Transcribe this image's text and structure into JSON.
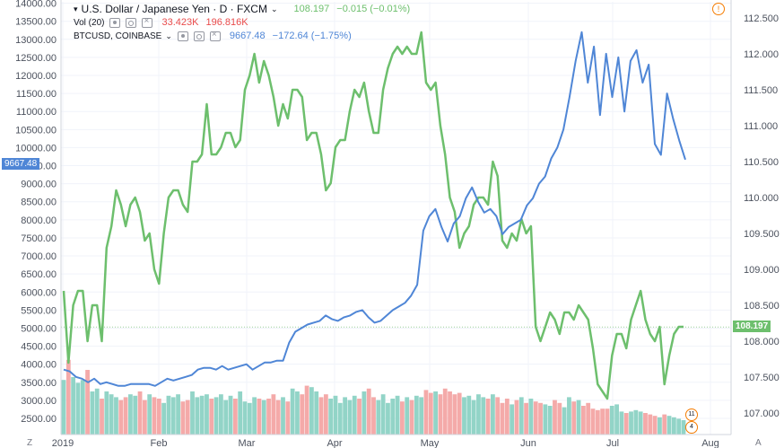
{
  "header": {
    "main_title": "U.S. Dollar / Japanese Yen · D · FXCM",
    "main_last": "108.197",
    "main_change": "−0.015 (−0.01%)",
    "vol_label": "Vol (20)",
    "vol_a": "33.423K",
    "vol_b": "196.816K",
    "compare_label": "BTCUSD, COINBASE",
    "compare_last": "9667.48",
    "compare_change": "−172.64 (−1.75%)"
  },
  "price_tags": {
    "left": "9667.48",
    "right": "108.197"
  },
  "bottom_left_btn": "Z",
  "bottom_right_btn": "A",
  "alert_icon": "!",
  "badges": [
    "11",
    "4"
  ],
  "colors": {
    "usdjpy": "#6dbf6d",
    "btc": "#4f86d6",
    "vol_up": "#86cfc1",
    "vol_down": "#f3a1a0",
    "last_price_line": "#9ed49a",
    "accent_orange": "#f57c00"
  },
  "chart_data": {
    "type": "line",
    "x_labels": [
      "2019",
      "Feb",
      "Mar",
      "Apr",
      "May",
      "Jun",
      "Jul",
      "Aug"
    ],
    "left_axis": {
      "ticks": [
        "14000.00",
        "13500.00",
        "13000.00",
        "12500.00",
        "12000.00",
        "11500.00",
        "11000.00",
        "10500.00",
        "10000.00",
        "9500.00",
        "9000.00",
        "8500.00",
        "8000.00",
        "7500.00",
        "7000.00",
        "6500.00",
        "6000.00",
        "5500.00",
        "5000.00",
        "4500.00",
        "4000.00",
        "3500.00",
        "3000.00",
        "2500.00"
      ],
      "range": [
        2500,
        14000
      ]
    },
    "right_axis": {
      "ticks": [
        "112.500",
        "112.000",
        "111.500",
        "111.000",
        "110.500",
        "110.000",
        "109.500",
        "109.000",
        "108.500",
        "108.000",
        "107.500",
        "107.000"
      ],
      "range": [
        106.7,
        112.6
      ]
    },
    "series": [
      {
        "name": "U.S. Dollar / Japanese Yen",
        "axis": "right",
        "values": [
          108.7,
          107.7,
          108.5,
          108.7,
          108.7,
          108.0,
          108.5,
          108.5,
          108.0,
          109.3,
          109.6,
          110.1,
          109.9,
          109.6,
          109.9,
          110.0,
          109.8,
          109.4,
          109.5,
          109.0,
          108.8,
          109.5,
          110.0,
          110.1,
          110.1,
          109.9,
          109.8,
          110.5,
          110.5,
          110.6,
          111.3,
          110.6,
          110.6,
          110.7,
          110.9,
          110.9,
          110.7,
          110.8,
          111.5,
          111.7,
          112.0,
          111.6,
          111.9,
          111.7,
          111.4,
          111.0,
          111.3,
          111.1,
          111.5,
          111.5,
          111.4,
          110.8,
          110.9,
          110.9,
          110.6,
          110.1,
          110.2,
          110.7,
          110.8,
          110.8,
          111.2,
          111.5,
          111.4,
          111.6,
          111.2,
          110.9,
          110.9,
          111.5,
          111.8,
          112.0,
          112.1,
          112.0,
          112.1,
          112.0,
          112.0,
          112.3,
          111.6,
          111.5,
          111.6,
          111.0,
          110.6,
          110.0,
          109.8,
          109.3,
          109.5,
          109.6,
          109.9,
          110.0,
          110.0,
          109.9,
          110.5,
          110.3,
          109.4,
          109.3,
          109.5,
          109.4,
          109.7,
          109.5,
          109.6,
          108.2,
          108.0,
          108.2,
          108.4,
          108.3,
          108.1,
          108.4,
          108.4,
          108.3,
          108.5,
          108.4,
          108.3,
          107.9,
          107.4,
          107.3,
          107.2,
          107.8,
          108.1,
          108.1,
          107.9,
          108.3,
          108.5,
          108.7,
          108.3,
          108.1,
          108.0,
          108.2,
          107.4,
          107.8,
          108.1,
          108.2,
          108.2
        ]
      },
      {
        "name": "BTCUSD, COINBASE",
        "axis": "left",
        "values": [
          3850,
          3800,
          3650,
          3600,
          3500,
          3600,
          3450,
          3500,
          3450,
          3400,
          3400,
          3450,
          3450,
          3450,
          3450,
          3400,
          3500,
          3600,
          3550,
          3600,
          3650,
          3700,
          3850,
          3900,
          3900,
          3850,
          3950,
          3850,
          3900,
          3950,
          4000,
          3850,
          3950,
          4050,
          4050,
          4100,
          4100,
          4600,
          4900,
          5000,
          5100,
          5150,
          5200,
          5350,
          5250,
          5200,
          5300,
          5350,
          5450,
          5500,
          5300,
          5150,
          5200,
          5350,
          5500,
          5600,
          5700,
          5900,
          6200,
          7700,
          8100,
          8300,
          7800,
          7400,
          7900,
          8100,
          8600,
          8900,
          8500,
          8200,
          8300,
          8100,
          7600,
          7800,
          7900,
          8000,
          8400,
          8600,
          9000,
          9200,
          9700,
          10000,
          10500,
          11400,
          12400,
          13200,
          11800,
          12800,
          10900,
          12600,
          11400,
          12500,
          11000,
          12400,
          12700,
          11800,
          12300,
          10100,
          9800,
          11500,
          10800,
          10200,
          9667
        ]
      },
      {
        "name": "Vol (20)",
        "axis": "volume",
        "values": [
          38,
          52,
          40,
          36,
          38,
          45,
          30,
          32,
          25,
          30,
          28,
          26,
          24,
          26,
          28,
          27,
          30,
          24,
          28,
          26,
          25,
          22,
          27,
          26,
          28,
          23,
          24,
          30,
          26,
          27,
          28,
          25,
          26,
          28,
          24,
          27,
          25,
          30,
          23,
          22,
          26,
          25,
          24,
          25,
          28,
          24,
          26,
          23,
          32,
          30,
          28,
          34,
          33,
          30,
          26,
          28,
          25,
          27,
          22,
          26,
          24,
          27,
          25,
          30,
          32,
          26,
          24,
          28,
          22,
          25,
          27,
          23,
          26,
          24,
          27,
          26,
          31,
          29,
          30,
          28,
          32,
          30,
          28,
          29,
          26,
          27,
          24,
          28,
          26,
          25,
          28,
          26,
          22,
          25,
          21,
          24,
          26,
          22,
          25,
          23,
          22,
          21,
          20,
          24,
          22,
          19,
          26,
          23,
          24,
          20,
          22,
          18,
          17,
          18,
          18,
          20,
          21,
          16,
          15,
          16,
          17,
          16,
          15,
          14,
          13,
          12,
          14,
          13,
          12,
          11,
          10
        ]
      }
    ]
  }
}
